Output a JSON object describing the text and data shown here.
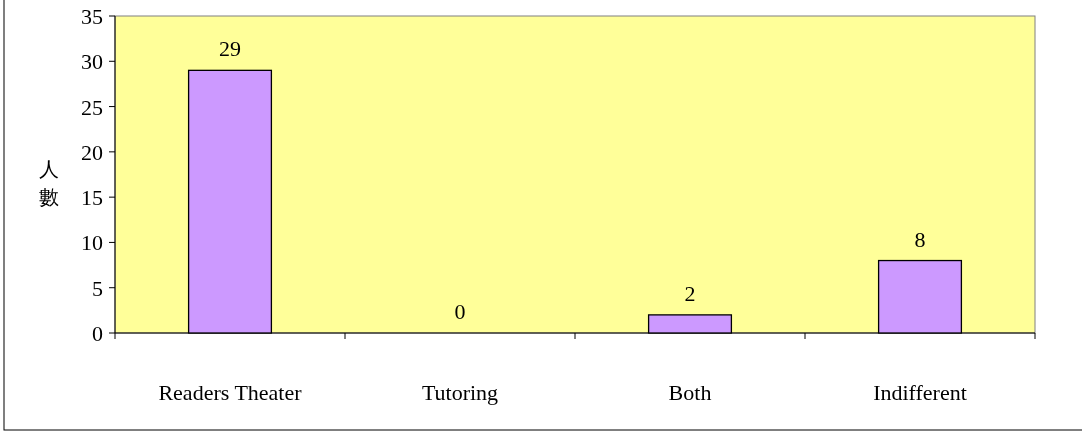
{
  "chart_data": {
    "type": "bar",
    "ylabel": "人數",
    "categories": [
      "Readers Theater",
      "Tutoring",
      "Both",
      "Indifferent"
    ],
    "values": [
      29,
      0,
      2,
      8
    ],
    "color": "#cc99ff",
    "ylim": [
      0,
      35
    ],
    "yticks": [
      0,
      5,
      10,
      15,
      20,
      25,
      30,
      35
    ],
    "data_labels": true
  }
}
